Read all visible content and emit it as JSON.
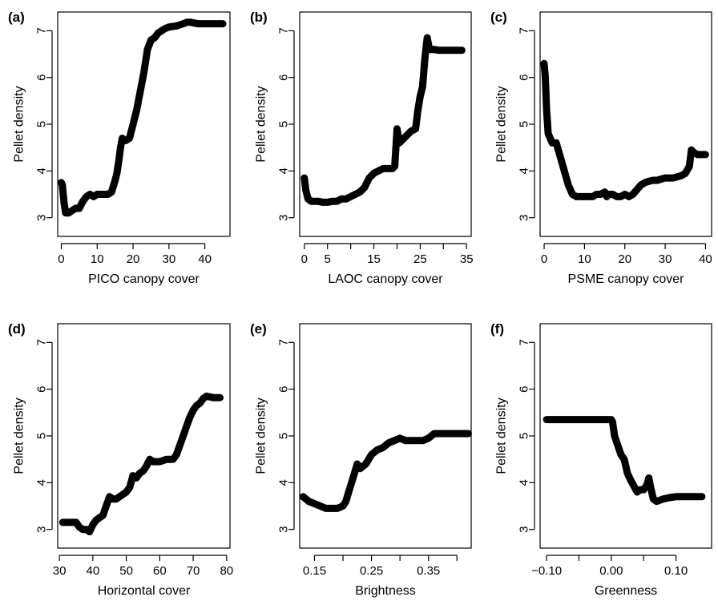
{
  "chart_data": [
    {
      "type": "line",
      "panel": "(a)",
      "xlabel": "PICO canopy cover",
      "ylabel": "Pellet density",
      "xlim": [
        -1,
        47
      ],
      "ylim": [
        2.6,
        7.4
      ],
      "xticks": [
        0,
        10,
        20,
        30,
        40
      ],
      "xtick_labels": [
        "0",
        "10",
        "20",
        "30",
        "40"
      ],
      "yticks": [
        3,
        4,
        5,
        6,
        7
      ],
      "ytick_labels": [
        "3",
        "4",
        "5",
        "6",
        "7"
      ],
      "series": [
        {
          "x": [
            0,
            0.3,
            0.8,
            1.2,
            2,
            3,
            4,
            5,
            6,
            7,
            8,
            9,
            10,
            11,
            12,
            13,
            14,
            15,
            15.5,
            16,
            16.5,
            17,
            17.5,
            18,
            19,
            20,
            21,
            22,
            23,
            24,
            25,
            26,
            27,
            28,
            29,
            30,
            32,
            34,
            35,
            36,
            38,
            40,
            42,
            45
          ],
          "y": [
            3.75,
            3.7,
            3.3,
            3.1,
            3.1,
            3.15,
            3.2,
            3.2,
            3.35,
            3.45,
            3.5,
            3.45,
            3.5,
            3.5,
            3.5,
            3.5,
            3.55,
            3.8,
            3.95,
            4.2,
            4.5,
            4.7,
            4.65,
            4.65,
            4.7,
            5.0,
            5.3,
            5.7,
            6.1,
            6.6,
            6.8,
            6.85,
            6.95,
            7.0,
            7.05,
            7.08,
            7.1,
            7.15,
            7.18,
            7.18,
            7.15,
            7.15,
            7.15,
            7.15
          ]
        }
      ]
    },
    {
      "type": "line",
      "panel": "(b)",
      "xlabel": "LAOC canopy cover",
      "ylabel": "Pellet density",
      "xlim": [
        -1,
        36
      ],
      "ylim": [
        2.6,
        7.4
      ],
      "xticks": [
        0,
        5,
        15,
        25,
        35
      ],
      "xtick_labels": [
        "0",
        "5",
        "15",
        "25",
        "35"
      ],
      "minor_xticks": [
        10,
        20,
        30
      ],
      "yticks": [
        3,
        4,
        5,
        6,
        7
      ],
      "ytick_labels": [
        "3",
        "4",
        "5",
        "6",
        "7"
      ],
      "series": [
        {
          "x": [
            0,
            0.3,
            0.8,
            1.5,
            2,
            3,
            4,
            5,
            6,
            7,
            8,
            9,
            10,
            11,
            12,
            13,
            14,
            15,
            16,
            17,
            18,
            19,
            19.5,
            20,
            20.5,
            21,
            22,
            23,
            24,
            24.5,
            25,
            25.5,
            26,
            26.5,
            27,
            28,
            29,
            30,
            32,
            34
          ],
          "y": [
            3.85,
            3.6,
            3.4,
            3.35,
            3.35,
            3.35,
            3.33,
            3.33,
            3.35,
            3.35,
            3.4,
            3.4,
            3.45,
            3.5,
            3.55,
            3.65,
            3.85,
            3.95,
            4.0,
            4.05,
            4.05,
            4.05,
            4.1,
            4.9,
            4.6,
            4.65,
            4.75,
            4.85,
            4.9,
            5.3,
            5.6,
            5.8,
            6.4,
            6.85,
            6.6,
            6.6,
            6.58,
            6.58,
            6.58,
            6.58
          ]
        }
      ]
    },
    {
      "type": "line",
      "panel": "(c)",
      "xlabel": "PSME canopy cover",
      "ylabel": "Pellet density",
      "xlim": [
        -1,
        41.5
      ],
      "ylim": [
        2.6,
        7.4
      ],
      "xticks": [
        0,
        10,
        20,
        30,
        40
      ],
      "xtick_labels": [
        "0",
        "10",
        "20",
        "30",
        "40"
      ],
      "yticks": [
        3,
        4,
        5,
        6,
        7
      ],
      "ytick_labels": [
        "3",
        "4",
        "5",
        "6",
        "7"
      ],
      "series": [
        {
          "x": [
            0,
            0.3,
            0.6,
            1,
            1.5,
            2,
            3,
            4,
            5,
            6,
            7,
            8,
            9,
            10,
            11,
            12,
            13,
            14,
            15,
            15.5,
            16,
            17,
            18,
            19,
            20,
            21,
            22,
            23,
            24,
            25,
            26,
            27,
            28,
            30,
            32,
            34,
            35,
            36,
            36.5,
            37,
            38,
            40
          ],
          "y": [
            6.3,
            6.0,
            5.3,
            4.8,
            4.7,
            4.6,
            4.6,
            4.3,
            4.0,
            3.7,
            3.5,
            3.45,
            3.45,
            3.45,
            3.45,
            3.45,
            3.5,
            3.5,
            3.55,
            3.45,
            3.5,
            3.5,
            3.45,
            3.45,
            3.5,
            3.45,
            3.5,
            3.6,
            3.7,
            3.75,
            3.78,
            3.8,
            3.8,
            3.85,
            3.85,
            3.9,
            3.95,
            4.1,
            4.45,
            4.4,
            4.35,
            4.35
          ]
        }
      ]
    },
    {
      "type": "line",
      "panel": "(d)",
      "xlabel": "Horizontal cover",
      "ylabel": "Pellet density",
      "xlim": [
        29.5,
        81
      ],
      "ylim": [
        2.6,
        7.4
      ],
      "xticks": [
        30,
        40,
        50,
        60,
        70,
        80
      ],
      "xtick_labels": [
        "30",
        "40",
        "50",
        "60",
        "70",
        "80"
      ],
      "yticks": [
        3,
        4,
        5,
        6,
        7
      ],
      "ytick_labels": [
        "3",
        "4",
        "5",
        "6",
        "7"
      ],
      "series": [
        {
          "x": [
            31,
            33,
            35,
            36,
            37,
            38,
            39,
            40,
            41,
            42,
            43,
            44,
            45,
            46,
            47,
            48,
            49,
            50,
            51,
            52,
            53,
            54,
            55,
            56,
            57,
            58,
            59,
            60,
            62,
            64,
            65,
            66,
            67,
            68,
            69,
            70,
            71,
            72,
            73,
            74,
            76,
            78
          ],
          "y": [
            3.15,
            3.15,
            3.15,
            3.05,
            3.0,
            3.0,
            2.95,
            3.1,
            3.2,
            3.25,
            3.3,
            3.5,
            3.7,
            3.65,
            3.65,
            3.7,
            3.75,
            3.8,
            3.9,
            4.15,
            4.1,
            4.2,
            4.25,
            4.35,
            4.5,
            4.45,
            4.45,
            4.45,
            4.5,
            4.5,
            4.6,
            4.8,
            5.0,
            5.2,
            5.4,
            5.55,
            5.65,
            5.7,
            5.8,
            5.85,
            5.82,
            5.82
          ]
        }
      ]
    },
    {
      "type": "line",
      "panel": "(e)",
      "xlabel": "Brightness",
      "ylabel": "Pellet density",
      "xlim": [
        0.124,
        0.425
      ],
      "ylim": [
        2.6,
        7.4
      ],
      "xticks": [
        0.15,
        0.25,
        0.35
      ],
      "xtick_labels": [
        "0.15",
        "0.25",
        "0.35"
      ],
      "minor_xticks": [
        0.2,
        0.3,
        0.4
      ],
      "yticks": [
        3,
        4,
        5,
        6,
        7
      ],
      "ytick_labels": [
        "3",
        "4",
        "5",
        "6",
        "7"
      ],
      "series": [
        {
          "x": [
            0.13,
            0.135,
            0.14,
            0.15,
            0.16,
            0.17,
            0.18,
            0.19,
            0.2,
            0.205,
            0.21,
            0.215,
            0.22,
            0.225,
            0.23,
            0.24,
            0.25,
            0.26,
            0.27,
            0.28,
            0.29,
            0.3,
            0.31,
            0.32,
            0.33,
            0.34,
            0.35,
            0.36,
            0.37,
            0.38,
            0.39,
            0.4,
            0.41,
            0.42
          ],
          "y": [
            3.7,
            3.65,
            3.6,
            3.55,
            3.5,
            3.45,
            3.45,
            3.45,
            3.5,
            3.6,
            3.8,
            4.0,
            4.2,
            4.4,
            4.3,
            4.4,
            4.6,
            4.7,
            4.75,
            4.85,
            4.9,
            4.95,
            4.9,
            4.9,
            4.9,
            4.9,
            4.95,
            5.05,
            5.05,
            5.05,
            5.05,
            5.05,
            5.05,
            5.05
          ]
        }
      ]
    },
    {
      "type": "line",
      "panel": "(f)",
      "xlabel": "Greenness",
      "ylabel": "Pellet density",
      "xlim": [
        -0.11,
        0.155
      ],
      "ylim": [
        2.6,
        7.4
      ],
      "xticks": [
        -0.1,
        0.0,
        0.1
      ],
      "xtick_labels": [
        "−0.10",
        "0.00",
        "0.10"
      ],
      "minor_xticks": [
        -0.05,
        0.05
      ],
      "yticks": [
        3,
        4,
        5,
        6,
        7
      ],
      "ytick_labels": [
        "3",
        "4",
        "5",
        "6",
        "7"
      ],
      "series": [
        {
          "x": [
            -0.1,
            -0.08,
            -0.06,
            -0.04,
            -0.02,
            -0.01,
            0.0,
            0.002,
            0.005,
            0.01,
            0.015,
            0.02,
            0.025,
            0.03,
            0.04,
            0.045,
            0.05,
            0.055,
            0.058,
            0.06,
            0.065,
            0.07,
            0.08,
            0.09,
            0.1,
            0.11,
            0.12,
            0.13,
            0.14
          ],
          "y": [
            5.35,
            5.35,
            5.35,
            5.35,
            5.35,
            5.35,
            5.35,
            5.3,
            5.0,
            4.8,
            4.6,
            4.5,
            4.2,
            4.05,
            3.8,
            3.85,
            3.85,
            3.95,
            4.1,
            3.95,
            3.65,
            3.6,
            3.65,
            3.68,
            3.7,
            3.7,
            3.7,
            3.7,
            3.7
          ]
        }
      ]
    }
  ]
}
